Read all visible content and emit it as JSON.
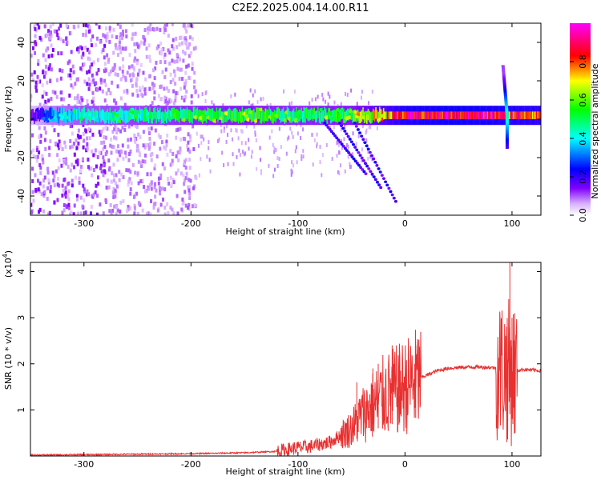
{
  "title": "C2E2.2025.004.14.00.R11",
  "chart_data": [
    {
      "type": "heatmap",
      "xlabel": "Height of straight line (km)",
      "ylabel": "Frequency (Hz)",
      "xlim": [
        -350,
        127
      ],
      "ylim": [
        -50,
        50
      ],
      "xticks": [
        -300,
        -200,
        -100,
        0,
        100
      ],
      "yticks": [
        -40,
        -20,
        0,
        20,
        40
      ],
      "colorbar": {
        "label": "Normalized spectral amplitude",
        "range": [
          0.0,
          1.0
        ],
        "ticks": [
          0.0,
          0.2,
          0.4,
          0.6,
          0.8
        ],
        "tick_labels": [
          "0.0",
          "0.2",
          "0.4",
          "0.6",
          "0.8"
        ],
        "colormap": [
          "#ffffff",
          "#c080ff",
          "#8000ff",
          "#0000ff",
          "#00ffff",
          "#00ff00",
          "#ffff00",
          "#ff0000",
          "#ff00ff"
        ]
      },
      "features": {
        "main_band_center_hz": 2,
        "main_band_strength": [
          {
            "x": -350,
            "amp": 0.15
          },
          {
            "x": -330,
            "amp": 0.35
          },
          {
            "x": -300,
            "amp": 0.45
          },
          {
            "x": -250,
            "amp": 0.5
          },
          {
            "x": -200,
            "amp": 0.55
          },
          {
            "x": -150,
            "amp": 0.6
          },
          {
            "x": -100,
            "amp": 0.55
          },
          {
            "x": -50,
            "amp": 0.6
          },
          {
            "x": -20,
            "amp": 0.8
          },
          {
            "x": 0,
            "amp": 0.95
          },
          {
            "x": 50,
            "amp": 1.0
          },
          {
            "x": 90,
            "amp": 0.95
          },
          {
            "x": 127,
            "amp": 0.9
          }
        ],
        "scatter_region_x": [
          -350,
          -195
        ],
        "spike_x": 97
      }
    },
    {
      "type": "line",
      "xlabel": "Height of straight line (km)",
      "ylabel": "SNR (10 * v/v)",
      "yscale_label": "(x10",
      "yscale_exp": "4",
      "xlim": [
        -350,
        127
      ],
      "ylim": [
        0,
        4.2
      ],
      "xticks": [
        -300,
        -200,
        -100,
        0,
        100
      ],
      "yticks": [
        1,
        2,
        3,
        4
      ],
      "color": "#e83030",
      "series": [
        {
          "x": [
            -350,
            -300,
            -250,
            -200,
            -150,
            -120,
            -100,
            -90,
            -80,
            -70,
            -60,
            -50,
            -40,
            -30,
            -20,
            -10,
            0,
            10,
            20,
            30,
            40,
            50,
            60,
            70,
            80,
            90,
            95,
            100,
            105,
            110,
            127
          ],
          "y": [
            0.02,
            0.03,
            0.04,
            0.05,
            0.07,
            0.1,
            0.18,
            0.2,
            0.25,
            0.3,
            0.45,
            0.6,
            0.9,
            1.1,
            1.3,
            1.4,
            1.5,
            1.65,
            1.75,
            1.85,
            1.9,
            1.92,
            1.93,
            1.93,
            1.92,
            1.9,
            1.85,
            1.8,
            1.85,
            1.88,
            1.85
          ]
        }
      ],
      "spikes": [
        {
          "x": -45,
          "y": 1.6
        },
        {
          "x": -30,
          "y": 1.9
        },
        {
          "x": -25,
          "y": 2.0
        },
        {
          "x": -12,
          "y": 2.4
        },
        {
          "x": -5,
          "y": 1.3
        },
        {
          "x": 10,
          "y": 2.4
        },
        {
          "x": 95,
          "y": 2.8
        },
        {
          "x": 98,
          "y": 4.2
        },
        {
          "x": 100,
          "y": 3.0
        }
      ]
    }
  ]
}
